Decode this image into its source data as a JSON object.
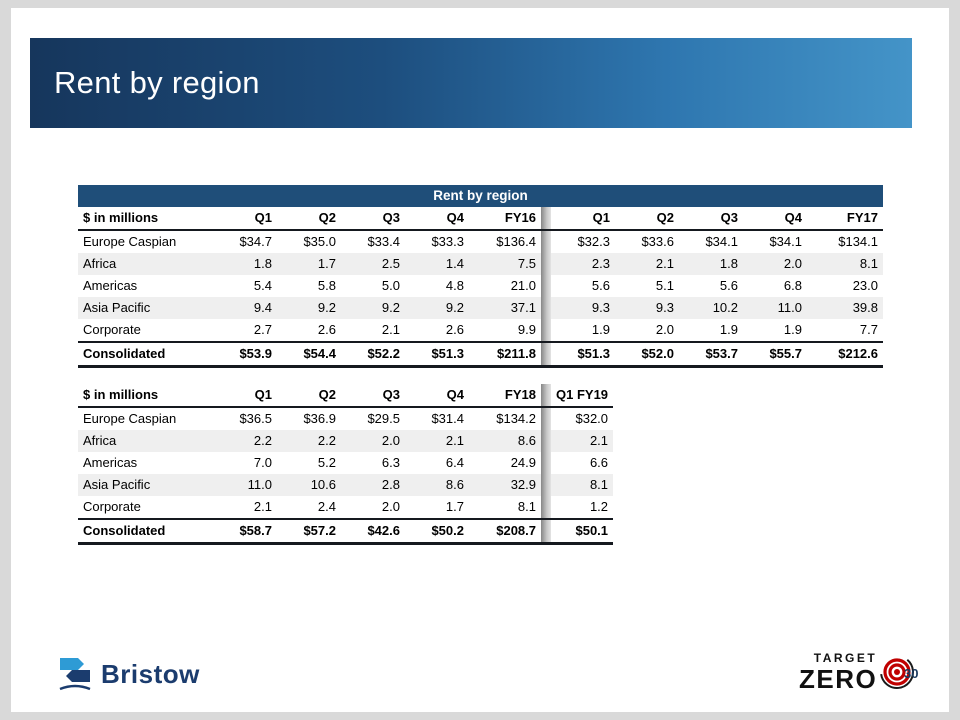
{
  "slide": {
    "title": "Rent by region",
    "page_number": "30"
  },
  "table1": {
    "title": "Rent by region",
    "corner_label": "$ in millions",
    "columns": [
      "Q1",
      "Q2",
      "Q3",
      "Q4",
      "FY16",
      "Q1",
      "Q2",
      "Q3",
      "Q4",
      "FY17"
    ],
    "rows": [
      {
        "label": "Europe Caspian",
        "values": [
          "$34.7",
          "$35.0",
          "$33.4",
          "$33.3",
          "$136.4",
          "$32.3",
          "$33.6",
          "$34.1",
          "$34.1",
          "$134.1"
        ]
      },
      {
        "label": "Africa",
        "values": [
          "1.8",
          "1.7",
          "2.5",
          "1.4",
          "7.5",
          "2.3",
          "2.1",
          "1.8",
          "2.0",
          "8.1"
        ]
      },
      {
        "label": "Americas",
        "values": [
          "5.4",
          "5.8",
          "5.0",
          "4.8",
          "21.0",
          "5.6",
          "5.1",
          "5.6",
          "6.8",
          "23.0"
        ]
      },
      {
        "label": "Asia Pacific",
        "values": [
          "9.4",
          "9.2",
          "9.2",
          "9.2",
          "37.1",
          "9.3",
          "9.3",
          "10.2",
          "11.0",
          "39.8"
        ]
      },
      {
        "label": "Corporate",
        "values": [
          "2.7",
          "2.6",
          "2.1",
          "2.6",
          "9.9",
          "1.9",
          "2.0",
          "1.9",
          "1.9",
          "7.7"
        ]
      },
      {
        "label": "Consolidated",
        "total": true,
        "values": [
          "$53.9",
          "$54.4",
          "$52.2",
          "$51.3",
          "$211.8",
          "$51.3",
          "$52.0",
          "$53.7",
          "$55.7",
          "$212.6"
        ]
      }
    ]
  },
  "table2": {
    "corner_label": "$ in millions",
    "columns": [
      "Q1",
      "Q2",
      "Q3",
      "Q4",
      "FY18",
      "Q1 FY19"
    ],
    "rows": [
      {
        "label": "Europe Caspian",
        "values": [
          "$36.5",
          "$36.9",
          "$29.5",
          "$31.4",
          "$134.2",
          "$32.0"
        ]
      },
      {
        "label": "Africa",
        "values": [
          "2.2",
          "2.2",
          "2.0",
          "2.1",
          "8.6",
          "2.1"
        ]
      },
      {
        "label": "Americas",
        "values": [
          "7.0",
          "5.2",
          "6.3",
          "6.4",
          "24.9",
          "6.6"
        ]
      },
      {
        "label": "Asia Pacific",
        "values": [
          "11.0",
          "10.6",
          "2.8",
          "8.6",
          "32.9",
          "8.1"
        ]
      },
      {
        "label": "Corporate",
        "values": [
          "2.1",
          "2.4",
          "2.0",
          "1.7",
          "8.1",
          "1.2"
        ]
      },
      {
        "label": "Consolidated",
        "total": true,
        "values": [
          "$58.7",
          "$57.2",
          "$42.6",
          "$50.2",
          "$208.7",
          "$50.1"
        ]
      }
    ]
  },
  "logos": {
    "bristow": "Bristow",
    "target_zero_line1": "TARGET",
    "target_zero_line2": "ZERO"
  },
  "colors": {
    "header_gradient_start": "#16365C",
    "header_gradient_end": "#4494C8",
    "table_title_bg": "#1F4E79",
    "accent_navy": "#17375D",
    "target_red": "#C00000"
  }
}
